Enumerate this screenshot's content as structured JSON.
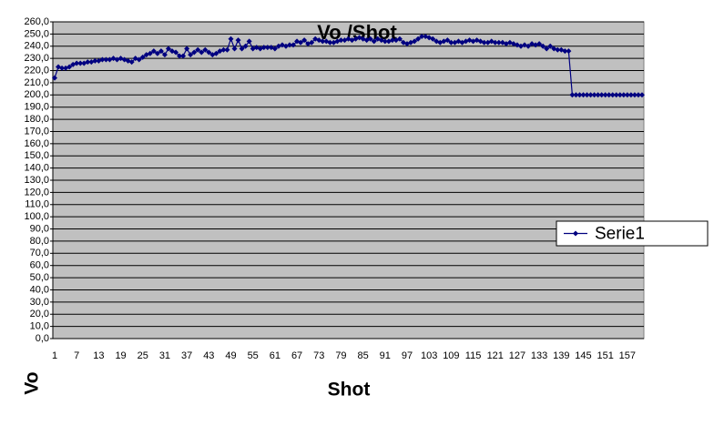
{
  "chart_data": {
    "type": "line",
    "title": "Vo /Shot",
    "x_label": "Shot",
    "y_label": "Vo",
    "categories": [
      1,
      null,
      null,
      null,
      null,
      null,
      7,
      null,
      null,
      null,
      null,
      null,
      13,
      null,
      null,
      null,
      null,
      null,
      19,
      null,
      null,
      null,
      null,
      null,
      25,
      null,
      null,
      null,
      null,
      null,
      31,
      null,
      null,
      null,
      null,
      null,
      37,
      null,
      null,
      null,
      null,
      null,
      43,
      null,
      null,
      null,
      null,
      null,
      49,
      null,
      null,
      null,
      null,
      null,
      55,
      null,
      null,
      null,
      null,
      null,
      61,
      null,
      null,
      null,
      null,
      null,
      67,
      null,
      null,
      null,
      null,
      null,
      73,
      null,
      null,
      null,
      null,
      null,
      79,
      null,
      null,
      null,
      null,
      null,
      85,
      null,
      null,
      null,
      null,
      null,
      91,
      null,
      null,
      null,
      null,
      null,
      97,
      null,
      null,
      null,
      null,
      null,
      103,
      null,
      null,
      null,
      null,
      null,
      109,
      null,
      null,
      null,
      null,
      null,
      115,
      null,
      null,
      null,
      null,
      null,
      121,
      null,
      null,
      null,
      null,
      null,
      127,
      null,
      null,
      null,
      null,
      null,
      133,
      null,
      null,
      null,
      null,
      null,
      139,
      null,
      null,
      null,
      null,
      null,
      145,
      null,
      null,
      null,
      null,
      null,
      151,
      null,
      null,
      null,
      null,
      null,
      157,
      null,
      null,
      null,
      null
    ],
    "series": [
      {
        "name": "Serie1",
        "color": "#000080",
        "values": [
          214,
          223,
          222,
          222,
          223,
          225,
          226,
          226,
          226,
          227,
          227,
          228,
          228,
          229,
          229,
          229,
          230,
          229,
          230,
          229,
          228,
          227,
          230,
          229,
          231,
          233,
          234,
          236,
          234,
          236,
          233,
          238,
          236,
          235,
          232,
          232,
          238,
          233,
          235,
          237,
          235,
          237,
          235,
          233,
          234,
          236,
          237,
          237,
          246,
          238,
          245,
          238,
          240,
          244,
          238,
          239,
          238,
          239,
          239,
          239,
          238,
          240,
          241,
          240,
          241,
          241,
          244,
          243,
          245,
          242,
          243,
          246,
          245,
          244,
          244,
          243,
          243,
          244,
          245,
          245,
          246,
          245,
          246,
          247,
          246,
          245,
          246,
          244,
          246,
          245,
          244,
          244,
          245,
          245,
          246,
          243,
          242,
          243,
          244,
          246,
          248,
          248,
          247,
          246,
          244,
          243,
          244,
          245,
          243,
          243,
          244,
          243,
          244,
          245,
          244,
          245,
          244,
          243,
          243,
          244,
          243,
          243,
          243,
          242,
          243,
          242,
          241,
          240,
          241,
          240,
          242,
          241,
          242,
          240,
          238,
          240,
          238,
          237,
          237,
          236,
          236,
          200,
          200,
          200,
          200,
          200,
          200,
          200,
          200,
          200,
          200,
          200,
          200,
          200,
          200,
          200,
          200,
          200,
          200,
          200,
          200
        ]
      }
    ],
    "ylim": [
      0,
      260
    ],
    "yticks": [
      {
        "value": 0,
        "label": "0,0"
      },
      {
        "value": 10,
        "label": "10,0"
      },
      {
        "value": 20,
        "label": "20,0"
      },
      {
        "value": 30,
        "label": "30,0"
      },
      {
        "value": 40,
        "label": "40,0"
      },
      {
        "value": 50,
        "label": "50,0"
      },
      {
        "value": 60,
        "label": "60,0"
      },
      {
        "value": 70,
        "label": "70,0"
      },
      {
        "value": 80,
        "label": "80,0"
      },
      {
        "value": 90,
        "label": "90,0"
      },
      {
        "value": 100,
        "label": "100,0"
      },
      {
        "value": 110,
        "label": "110,0"
      },
      {
        "value": 120,
        "label": "120,0"
      },
      {
        "value": 130,
        "label": "130,0"
      },
      {
        "value": 140,
        "label": "140,0"
      },
      {
        "value": 150,
        "label": "150,0"
      },
      {
        "value": 160,
        "label": "160,0"
      },
      {
        "value": 170,
        "label": "170,0"
      },
      {
        "value": 180,
        "label": "180,0"
      },
      {
        "value": 190,
        "label": "190,0"
      },
      {
        "value": 200,
        "label": "200,0"
      },
      {
        "value": 210,
        "label": "210,0"
      },
      {
        "value": 220,
        "label": "220,0"
      },
      {
        "value": 230,
        "label": "230,0"
      },
      {
        "value": 240,
        "label": "240,0"
      },
      {
        "value": 250,
        "label": "250,0"
      },
      {
        "value": 260,
        "label": "260,0"
      }
    ],
    "grid": true,
    "legend": "right"
  }
}
